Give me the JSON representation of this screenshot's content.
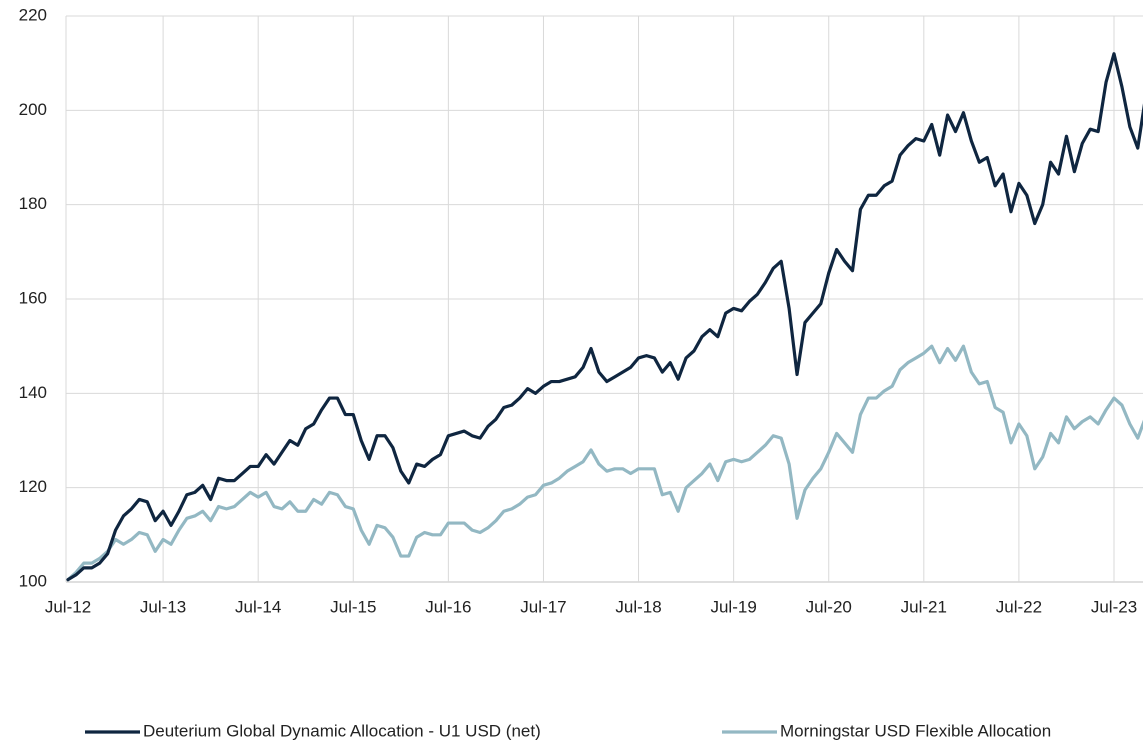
{
  "chart_data": {
    "type": "line",
    "categories": [
      "Jul-12",
      null,
      null,
      null,
      null,
      null,
      null,
      null,
      null,
      null,
      null,
      null,
      "Jul-13",
      null,
      null,
      null,
      null,
      null,
      null,
      null,
      null,
      null,
      null,
      null,
      "Jul-14",
      null,
      null,
      null,
      null,
      null,
      null,
      null,
      null,
      null,
      null,
      null,
      "Jul-15",
      null,
      null,
      null,
      null,
      null,
      null,
      null,
      null,
      null,
      null,
      null,
      "Jul-16",
      null,
      null,
      null,
      null,
      null,
      null,
      null,
      null,
      null,
      null,
      null,
      "Jul-17",
      null,
      null,
      null,
      null,
      null,
      null,
      null,
      null,
      null,
      null,
      null,
      "Jul-18",
      null,
      null,
      null,
      null,
      null,
      null,
      null,
      null,
      null,
      null,
      null,
      "Jul-19",
      null,
      null,
      null,
      null,
      null,
      null,
      null,
      null,
      null,
      null,
      null,
      "Jul-20",
      null,
      null,
      null,
      null,
      null,
      null,
      null,
      null,
      null,
      null,
      null,
      "Jul-21",
      null,
      null,
      null,
      null,
      null,
      null,
      null,
      null,
      null,
      null,
      null,
      "Jul-22",
      null,
      null,
      null,
      null,
      null,
      null,
      null,
      null,
      null,
      null,
      null,
      "Jul-23",
      null,
      null,
      null,
      null
    ],
    "series": [
      {
        "name": "Deuterium Global Dynamic Allocation - U1 USD (net)",
        "color": "#0f2640",
        "values": [
          100.5,
          101.5,
          103,
          103,
          104,
          106,
          111,
          114,
          115.5,
          117.5,
          117,
          113,
          115,
          112,
          115,
          118.5,
          119,
          120.5,
          117.5,
          122,
          121.5,
          121.5,
          123,
          124.5,
          124.5,
          127,
          125,
          127.5,
          130,
          129,
          132.5,
          133.5,
          136.5,
          139,
          139,
          135.5,
          135.5,
          130,
          126,
          131,
          131,
          128.5,
          123.5,
          121,
          125,
          124.5,
          126,
          127,
          131,
          131.5,
          132,
          131,
          130.5,
          133,
          134.5,
          137,
          137.5,
          139,
          141,
          140,
          141.5,
          142.5,
          142.5,
          143,
          143.5,
          145.5,
          149.5,
          144.5,
          142.5,
          143.5,
          144.5,
          145.5,
          147.5,
          148,
          147.5,
          144.5,
          146.5,
          143,
          147.5,
          149,
          152,
          153.5,
          152,
          157,
          158,
          157.5,
          159.5,
          161,
          163.5,
          166.5,
          168,
          158,
          144,
          155,
          157,
          159,
          165.5,
          170.5,
          168,
          166,
          179,
          182,
          182,
          184,
          185,
          190.5,
          192.5,
          194,
          193.5,
          197,
          190.5,
          199,
          195.5,
          199.5,
          193.5,
          189,
          190,
          184,
          186.5,
          178.5,
          184.5,
          182,
          176,
          180,
          189,
          186.5,
          194.5,
          187,
          193,
          196,
          195.5,
          206,
          212,
          205,
          196.5,
          192,
          203
        ]
      },
      {
        "name": "Morningstar USD Flexible Allocation",
        "color": "#93b8c3",
        "values": [
          100.5,
          102,
          104,
          104,
          105,
          106.5,
          109,
          108,
          109,
          110.5,
          110,
          106.5,
          109,
          108,
          111,
          113.5,
          114,
          115,
          113,
          116,
          115.5,
          116,
          117.5,
          119,
          118,
          119,
          116,
          115.5,
          117,
          115,
          115,
          117.5,
          116.5,
          119,
          118.5,
          116,
          115.5,
          111,
          108,
          112,
          111.5,
          109.5,
          105.5,
          105.5,
          109.5,
          110.5,
          110,
          110,
          112.5,
          112.5,
          112.5,
          111,
          110.5,
          111.5,
          113,
          115,
          115.5,
          116.5,
          118,
          118.5,
          120.5,
          121,
          122,
          123.5,
          124.5,
          125.5,
          128,
          125,
          123.5,
          124,
          124,
          123,
          124,
          124,
          124,
          118.5,
          119,
          115,
          120,
          121.5,
          123,
          125,
          121.5,
          125.5,
          126,
          125.5,
          126,
          127.5,
          129,
          131,
          130.5,
          125,
          113.5,
          119.5,
          122,
          124,
          127.5,
          131.5,
          129.5,
          127.5,
          135.5,
          139,
          139,
          140.5,
          141.5,
          145,
          146.5,
          147.5,
          148.5,
          150,
          146.5,
          149.5,
          147,
          150,
          144.5,
          142,
          142.5,
          137,
          136,
          129.5,
          133.5,
          131,
          124,
          126.5,
          131.5,
          129.5,
          135,
          132.5,
          134,
          135,
          133.5,
          136.5,
          139,
          137.5,
          133.5,
          130.5,
          135
        ]
      }
    ],
    "ylim": [
      100,
      220
    ],
    "yticks": [
      100,
      120,
      140,
      160,
      180,
      200,
      220
    ],
    "grid": true,
    "legend": "bottom"
  }
}
